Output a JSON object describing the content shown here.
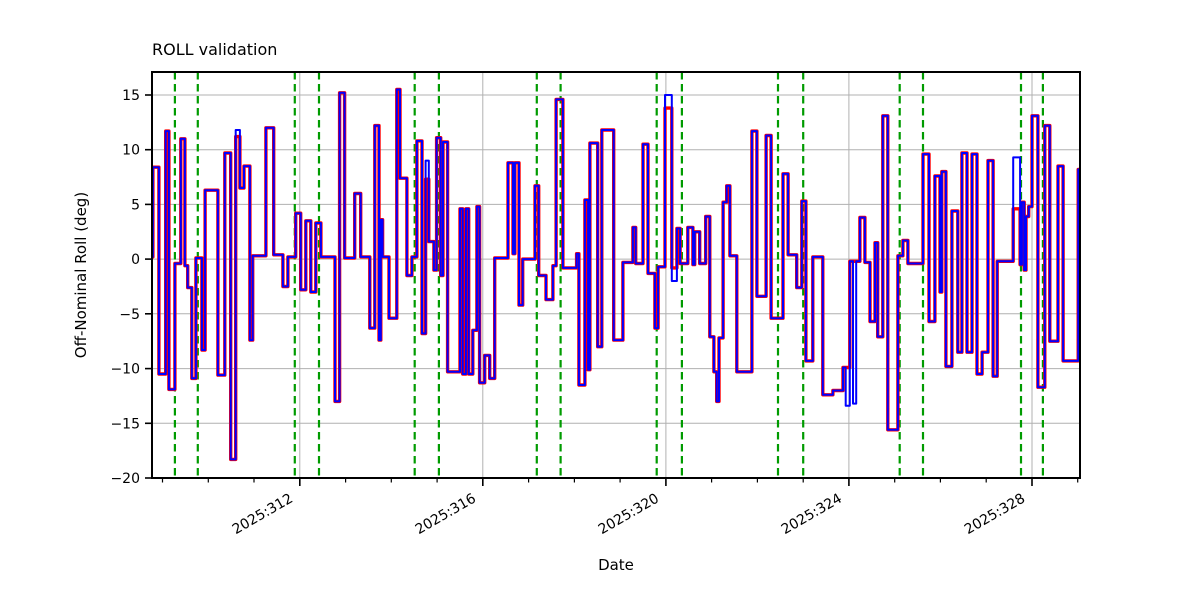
{
  "chart_data": {
    "type": "line",
    "title": "ROLL validation",
    "xlabel": "Date",
    "ylabel": "Off-Nominal Roll (deg)",
    "x_unit": "2025 day-of-year",
    "xlim": [
      308.77,
      329.05
    ],
    "ylim": [
      -20,
      17.1
    ],
    "grid": true,
    "x_ticks": {
      "values": [
        312,
        316,
        320,
        324,
        328
      ],
      "labels": [
        "2025:312",
        "2025:316",
        "2025:320",
        "2025:324",
        "2025:328"
      ]
    },
    "x_minor_tick_step": 1,
    "y_ticks": {
      "values": [
        15,
        10,
        5,
        0,
        -5,
        -10,
        -15,
        -20
      ],
      "labels": [
        "15",
        "10",
        "5",
        "0",
        "−5",
        "−10",
        "−15",
        "−20"
      ]
    },
    "vlines": {
      "style": "dashed",
      "color": "#009b00",
      "x": [
        309.27,
        309.77,
        311.89,
        312.42,
        314.51,
        315.04,
        317.18,
        317.7,
        319.8,
        320.35,
        322.45,
        323.0,
        325.11,
        325.62,
        327.76,
        328.24
      ]
    },
    "series": [
      {
        "id": "red",
        "color": "#ff0000",
        "width": 3.4,
        "z": 1
      },
      {
        "id": "blue",
        "color": "#0000ff",
        "width": 2.0,
        "z": 2
      }
    ],
    "steps_format": "[day, red_value, optional blue_value (defaults to red_value)] - step-after",
    "steps": [
      [
        308.77,
        0.2
      ],
      [
        308.79,
        8.4
      ],
      [
        308.92,
        -10.5
      ],
      [
        309.07,
        11.7
      ],
      [
        309.14,
        -11.9
      ],
      [
        309.27,
        -0.4
      ],
      [
        309.4,
        11.0
      ],
      [
        309.49,
        -0.6
      ],
      [
        309.55,
        -2.6
      ],
      [
        309.64,
        -10.9
      ],
      [
        309.73,
        0.1
      ],
      [
        309.86,
        -8.3
      ],
      [
        309.93,
        6.3
      ],
      [
        310.21,
        -10.6
      ],
      [
        310.36,
        9.7
      ],
      [
        310.49,
        -18.3
      ],
      [
        310.6,
        11.2,
        11.8
      ],
      [
        310.69,
        6.5
      ],
      [
        310.78,
        8.5
      ],
      [
        310.91,
        -7.4
      ],
      [
        310.97,
        0.3
      ],
      [
        311.26,
        12.0
      ],
      [
        311.43,
        0.4
      ],
      [
        311.63,
        -2.5
      ],
      [
        311.74,
        0.2
      ],
      [
        311.91,
        4.2
      ],
      [
        312.02,
        -2.8
      ],
      [
        312.13,
        3.5
      ],
      [
        312.24,
        -3.0
      ],
      [
        312.35,
        3.3
      ],
      [
        312.46,
        0.2
      ],
      [
        312.77,
        -13.0
      ],
      [
        312.87,
        15.2
      ],
      [
        312.98,
        0.1
      ],
      [
        313.2,
        6.0
      ],
      [
        313.33,
        0.2
      ],
      [
        313.53,
        -6.3
      ],
      [
        313.64,
        12.2
      ],
      [
        313.73,
        -7.4
      ],
      [
        313.77,
        3.6
      ],
      [
        313.81,
        0.2
      ],
      [
        313.95,
        -5.4
      ],
      [
        314.12,
        15.5
      ],
      [
        314.19,
        7.4
      ],
      [
        314.34,
        -1.5
      ],
      [
        314.45,
        0.2
      ],
      [
        314.56,
        10.8
      ],
      [
        314.67,
        -6.8
      ],
      [
        314.75,
        7.3,
        9.0
      ],
      [
        314.82,
        1.6
      ],
      [
        314.93,
        -1.0
      ],
      [
        314.99,
        11.1
      ],
      [
        315.08,
        -1.5
      ],
      [
        315.13,
        10.7
      ],
      [
        315.23,
        -10.3
      ],
      [
        315.5,
        4.6
      ],
      [
        315.56,
        -10.5
      ],
      [
        315.63,
        4.6
      ],
      [
        315.69,
        -10.5
      ],
      [
        315.78,
        -6.5
      ],
      [
        315.87,
        4.8
      ],
      [
        315.93,
        -11.3
      ],
      [
        316.04,
        -8.8
      ],
      [
        316.15,
        -10.9
      ],
      [
        316.26,
        0.1
      ],
      [
        316.55,
        8.8
      ],
      [
        316.66,
        0.5
      ],
      [
        316.7,
        8.8
      ],
      [
        316.79,
        -4.2
      ],
      [
        316.87,
        0.0
      ],
      [
        317.14,
        6.7
      ],
      [
        317.22,
        -1.5
      ],
      [
        317.38,
        -3.7
      ],
      [
        317.53,
        -0.6
      ],
      [
        317.6,
        14.6
      ],
      [
        317.75,
        -0.8
      ],
      [
        318.05,
        0.5
      ],
      [
        318.1,
        -11.5
      ],
      [
        318.23,
        5.4
      ],
      [
        318.3,
        -10.1
      ],
      [
        318.34,
        10.6
      ],
      [
        318.51,
        -8.0
      ],
      [
        318.6,
        11.8
      ],
      [
        318.86,
        -7.4
      ],
      [
        319.06,
        -0.3
      ],
      [
        319.28,
        2.9
      ],
      [
        319.34,
        -0.4
      ],
      [
        319.5,
        10.5
      ],
      [
        319.61,
        -1.3
      ],
      [
        319.76,
        -6.3
      ],
      [
        319.83,
        -0.7
      ],
      [
        319.98,
        13.8,
        15.0
      ],
      [
        320.13,
        -0.8,
        -2.0
      ],
      [
        320.24,
        2.8
      ],
      [
        320.31,
        -0.4
      ],
      [
        320.48,
        2.9
      ],
      [
        320.59,
        -0.5
      ],
      [
        320.63,
        2.5
      ],
      [
        320.74,
        -0.4
      ],
      [
        320.87,
        3.9
      ],
      [
        320.96,
        -7.1
      ],
      [
        321.05,
        -10.3
      ],
      [
        321.11,
        -13.0
      ],
      [
        321.16,
        -7.2
      ],
      [
        321.25,
        5.2
      ],
      [
        321.33,
        6.7
      ],
      [
        321.4,
        0.3
      ],
      [
        321.55,
        -10.3
      ],
      [
        321.88,
        11.7
      ],
      [
        321.99,
        -3.4
      ],
      [
        322.19,
        11.3
      ],
      [
        322.3,
        -5.4
      ],
      [
        322.56,
        7.8
      ],
      [
        322.67,
        0.4
      ],
      [
        322.86,
        -2.6
      ],
      [
        322.97,
        5.3
      ],
      [
        323.06,
        -9.3
      ],
      [
        323.21,
        0.2
      ],
      [
        323.43,
        -12.4
      ],
      [
        323.65,
        -12.0
      ],
      [
        323.87,
        -9.9
      ],
      [
        323.93,
        -9.9,
        -13.4
      ],
      [
        324.02,
        -0.2
      ],
      [
        324.09,
        -0.2,
        -13.2
      ],
      [
        324.16,
        -0.2
      ],
      [
        324.24,
        3.8
      ],
      [
        324.35,
        -0.3
      ],
      [
        324.46,
        -5.7
      ],
      [
        324.57,
        1.5
      ],
      [
        324.63,
        -7.1
      ],
      [
        324.74,
        13.1
      ],
      [
        324.85,
        -15.6
      ],
      [
        325.07,
        0.3
      ],
      [
        325.18,
        1.7
      ],
      [
        325.29,
        -0.4
      ],
      [
        325.62,
        9.6
      ],
      [
        325.75,
        -5.7
      ],
      [
        325.88,
        7.6
      ],
      [
        325.99,
        -3.0
      ],
      [
        326.03,
        8.0
      ],
      [
        326.12,
        -9.8
      ],
      [
        326.25,
        4.4
      ],
      [
        326.38,
        -8.5
      ],
      [
        326.47,
        9.7
      ],
      [
        326.58,
        -8.5
      ],
      [
        326.69,
        9.6
      ],
      [
        326.8,
        -10.5
      ],
      [
        326.91,
        -8.5
      ],
      [
        327.04,
        9.0
      ],
      [
        327.15,
        -10.7
      ],
      [
        327.24,
        -0.2
      ],
      [
        327.59,
        4.6,
        9.3
      ],
      [
        327.74,
        -0.5
      ],
      [
        327.78,
        5.2
      ],
      [
        327.83,
        -1.0
      ],
      [
        327.87,
        3.9
      ],
      [
        327.93,
        4.8
      ],
      [
        328.0,
        13.1
      ],
      [
        328.13,
        -11.7
      ],
      [
        328.28,
        12.2
      ],
      [
        328.39,
        -7.5
      ],
      [
        328.57,
        8.5
      ],
      [
        328.68,
        -9.3
      ],
      [
        329.01,
        8.2
      ]
    ],
    "colors": {
      "grid": "#b0b0b0",
      "spine": "#000000",
      "red_series": "#ff0000",
      "blue_series": "#0000ff",
      "event_lines": "#009b00",
      "background": "#ffffff"
    }
  }
}
